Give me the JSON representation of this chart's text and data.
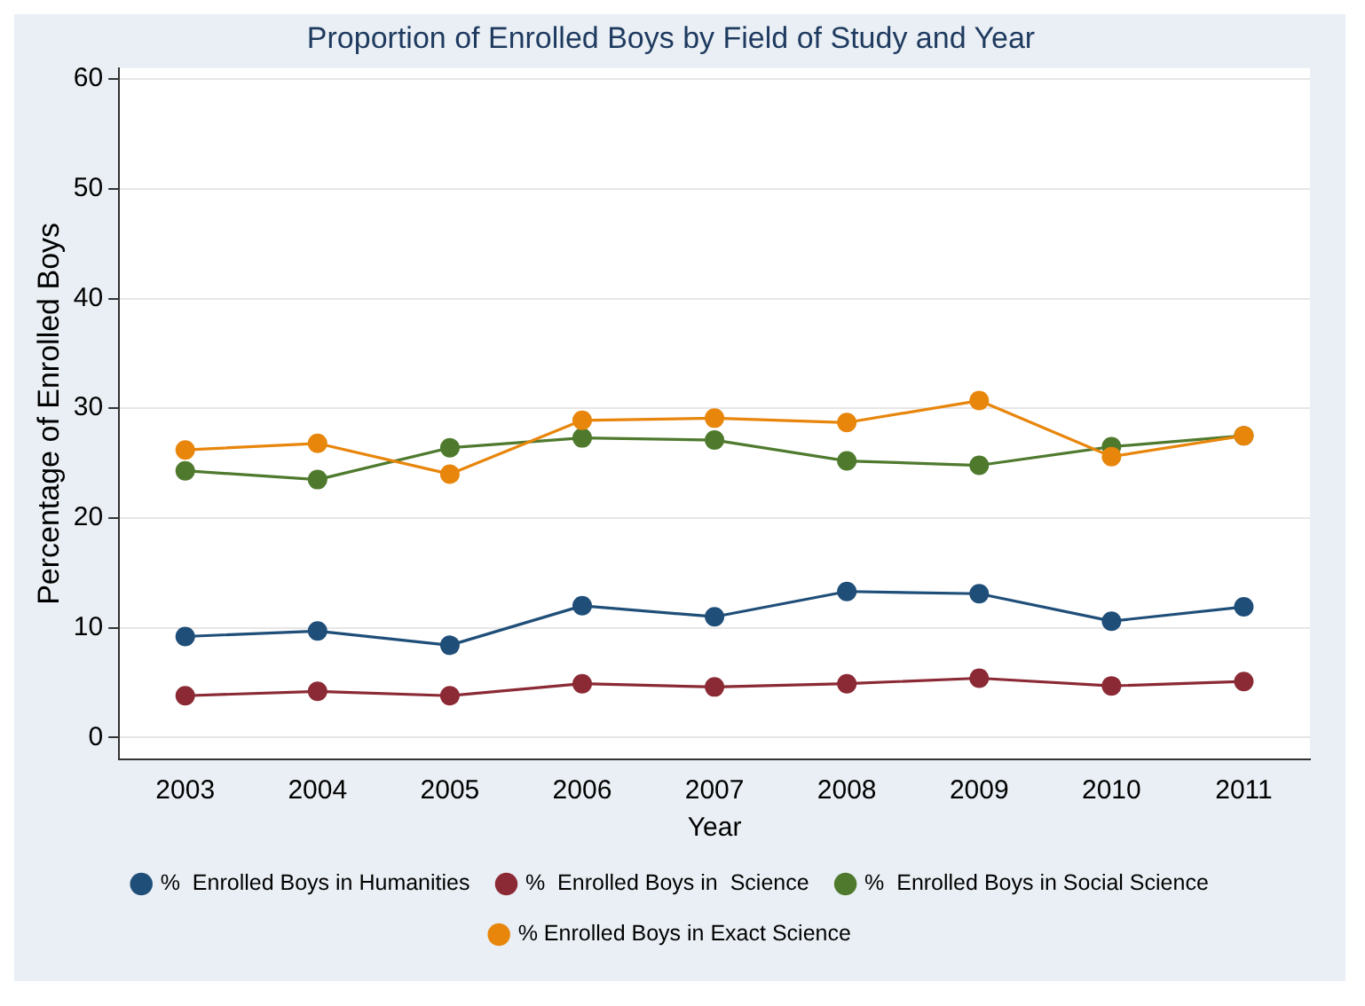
{
  "chart_data": {
    "type": "line",
    "title": "Proportion of Enrolled Boys by Field of Study and Year",
    "xlabel": "Year",
    "ylabel": "Percentage of Enrolled Boys",
    "categories": [
      "2003",
      "2004",
      "2005",
      "2006",
      "2007",
      "2008",
      "2009",
      "2010",
      "2011"
    ],
    "series": [
      {
        "name": "%  Enrolled Boys in Humanities",
        "color": "#1f4e79",
        "values": [
          9.2,
          9.7,
          8.4,
          12.0,
          11.0,
          13.3,
          13.1,
          10.6,
          11.9
        ]
      },
      {
        "name": "%  Enrolled Boys in  Science",
        "color": "#8b2a35",
        "values": [
          3.8,
          4.2,
          3.8,
          4.9,
          4.6,
          4.9,
          5.4,
          4.7,
          5.1
        ]
      },
      {
        "name": "%  Enrolled Boys in Social Science",
        "color": "#4f7a2e",
        "values": [
          24.3,
          23.5,
          26.4,
          27.3,
          27.1,
          25.2,
          24.8,
          26.5,
          27.5
        ]
      },
      {
        "name": "% Enrolled Boys in Exact Science",
        "color": "#e8860c",
        "values": [
          26.2,
          26.8,
          24.0,
          28.9,
          29.1,
          28.7,
          30.7,
          25.6,
          27.5
        ]
      }
    ],
    "ylim": [
      -2,
      61
    ],
    "yticks": [
      0,
      10,
      20,
      30,
      40,
      50,
      60
    ],
    "grid": "y",
    "legend": "bottom",
    "marker": "circle",
    "line_style": "solid"
  }
}
